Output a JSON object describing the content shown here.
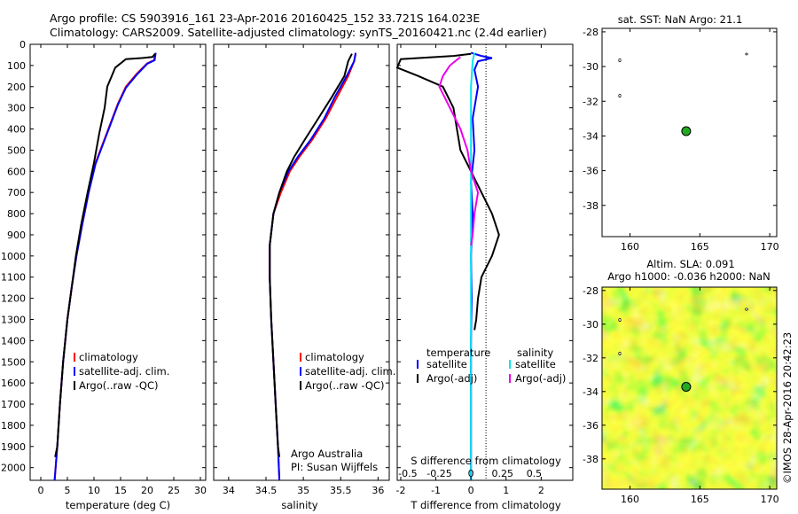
{
  "header": {
    "line1": "Argo profile: CS 5903916_161 23-Apr-2016 20160425_152 33.721S 164.023E",
    "line2": "Climatology: CARS2009. Satellite-adjusted climatology: synTS_20160421.nc (2.4d earlier)"
  },
  "colors": {
    "climatology": "#ff0000",
    "satellite": "#0000ff",
    "argo": "#000000",
    "sal_satellite": "#00e5ee",
    "sal_argo": "#ee00ee",
    "float": "#22aa22"
  },
  "chart_data": [
    {
      "type": "line",
      "id": "temperature",
      "xlabel": "temperature (deg C)",
      "xlim": [
        -2,
        31
      ],
      "ylim": [
        2060,
        0
      ],
      "xticks": [
        0,
        5,
        10,
        15,
        20,
        25,
        30
      ],
      "yticks": [
        0,
        100,
        200,
        300,
        400,
        500,
        600,
        700,
        800,
        900,
        1000,
        1100,
        1200,
        1300,
        1400,
        1500,
        1600,
        1700,
        1800,
        1900,
        2000
      ],
      "legend": [
        "climatology",
        "satellite-adj. clim.",
        "Argo(..raw -QC)"
      ],
      "series": [
        {
          "name": "climatology",
          "color": "#ff0000",
          "points": [
            [
              21.5,
              45
            ],
            [
              21.3,
              75
            ],
            [
              20,
              90
            ],
            [
              18,
              140
            ],
            [
              16,
              200
            ],
            [
              14.5,
              280
            ],
            [
              13,
              380
            ],
            [
              11.5,
              480
            ],
            [
              10.3,
              560
            ],
            [
              9,
              700
            ],
            [
              7.8,
              850
            ],
            [
              6.7,
              1000
            ],
            [
              5.8,
              1150
            ],
            [
              5,
              1300
            ],
            [
              4.2,
              1500
            ],
            [
              3.6,
              1700
            ],
            [
              3.1,
              1900
            ],
            [
              2.6,
              2060
            ]
          ]
        },
        {
          "name": "satellite-adj. clim.",
          "color": "#0000ff",
          "points": [
            [
              21.6,
              40
            ],
            [
              21.4,
              75
            ],
            [
              20,
              92
            ],
            [
              18,
              145
            ],
            [
              16,
              205
            ],
            [
              14.5,
              285
            ],
            [
              13,
              385
            ],
            [
              11.5,
              485
            ],
            [
              10.3,
              565
            ],
            [
              9,
              700
            ],
            [
              7.8,
              850
            ],
            [
              6.7,
              1000
            ],
            [
              5.8,
              1150
            ],
            [
              5,
              1300
            ],
            [
              4.2,
              1500
            ],
            [
              3.6,
              1700
            ],
            [
              3.1,
              1900
            ],
            [
              2.6,
              2060
            ]
          ]
        },
        {
          "name": "Argo(..raw -QC)",
          "color": "#000000",
          "points": [
            [
              21.5,
              45
            ],
            [
              21,
              60
            ],
            [
              19,
              65
            ],
            [
              16,
              70
            ],
            [
              14,
              110
            ],
            [
              12.5,
              200
            ],
            [
              12,
              300
            ],
            [
              11,
              420
            ],
            [
              10,
              560
            ],
            [
              8.8,
              700
            ],
            [
              7.6,
              850
            ],
            [
              6.6,
              1000
            ],
            [
              5.8,
              1150
            ],
            [
              5,
              1300
            ],
            [
              4.2,
              1500
            ],
            [
              3.6,
              1700
            ],
            [
              3.1,
              1900
            ],
            [
              2.7,
              1950
            ]
          ]
        }
      ]
    },
    {
      "type": "line",
      "id": "salinity",
      "xlabel": "salinity",
      "xlim": [
        33.8,
        36.15
      ],
      "ylim": [
        2060,
        0
      ],
      "xticks": [
        34,
        34.5,
        35,
        35.5,
        36
      ],
      "legend": [
        "climatology",
        "satellite-adj. clim.",
        "Argo(..raw -QC)"
      ],
      "annotation": [
        "Argo Australia",
        "PI: Susan Wijffels"
      ],
      "series": [
        {
          "name": "climatology",
          "color": "#ff0000",
          "points": [
            [
              35.7,
              45
            ],
            [
              35.68,
              80
            ],
            [
              35.6,
              150
            ],
            [
              35.45,
              250
            ],
            [
              35.3,
              350
            ],
            [
              35.12,
              450
            ],
            [
              34.95,
              530
            ],
            [
              34.82,
              600
            ],
            [
              34.7,
              700
            ],
            [
              34.6,
              800
            ],
            [
              34.55,
              950
            ],
            [
              34.55,
              1100
            ],
            [
              34.57,
              1300
            ],
            [
              34.6,
              1500
            ],
            [
              34.63,
              1700
            ],
            [
              34.66,
              1900
            ],
            [
              34.68,
              2060
            ]
          ]
        },
        {
          "name": "satellite-adj. clim.",
          "color": "#0000ff",
          "points": [
            [
              35.7,
              40
            ],
            [
              35.68,
              80
            ],
            [
              35.58,
              150
            ],
            [
              35.42,
              250
            ],
            [
              35.28,
              350
            ],
            [
              35.1,
              450
            ],
            [
              34.93,
              530
            ],
            [
              34.8,
              600
            ],
            [
              34.68,
              700
            ],
            [
              34.6,
              800
            ],
            [
              34.55,
              950
            ],
            [
              34.55,
              1100
            ],
            [
              34.57,
              1300
            ],
            [
              34.6,
              1500
            ],
            [
              34.63,
              1700
            ],
            [
              34.66,
              1900
            ],
            [
              34.68,
              2060
            ]
          ]
        },
        {
          "name": "Argo(..raw -QC)",
          "color": "#000000",
          "points": [
            [
              35.65,
              45
            ],
            [
              35.6,
              80
            ],
            [
              35.55,
              150
            ],
            [
              35.38,
              250
            ],
            [
              35.2,
              350
            ],
            [
              35.02,
              450
            ],
            [
              34.88,
              530
            ],
            [
              34.78,
              600
            ],
            [
              34.68,
              700
            ],
            [
              34.6,
              800
            ],
            [
              34.55,
              950
            ],
            [
              34.55,
              1100
            ],
            [
              34.57,
              1300
            ],
            [
              34.6,
              1500
            ],
            [
              34.63,
              1700
            ],
            [
              34.66,
              1900
            ],
            [
              34.68,
              1950
            ]
          ]
        }
      ]
    },
    {
      "type": "line",
      "id": "difference",
      "xlabel_top": "S difference from climatology",
      "xlabel": "T difference from climatology",
      "xlim": [
        -2.1,
        2.9
      ],
      "ylim": [
        2060,
        0
      ],
      "xticks_T": [
        "-2",
        "-1",
        "0",
        "1",
        "2"
      ],
      "xticks_S": [
        "-0.5",
        "-0.25",
        "0",
        "0.25",
        "0.5"
      ],
      "legend_temperature": [
        "temperature",
        "satellite",
        "Argo(-adj)"
      ],
      "legend_salinity": [
        "salinity",
        "satellite",
        "Argo(-adj)"
      ],
      "series": [
        {
          "name": "satellite",
          "color": "#0000ff",
          "points": [
            [
              0,
              40
            ],
            [
              0.3,
              55
            ],
            [
              0.6,
              65
            ],
            [
              0.2,
              80
            ],
            [
              0.1,
              120
            ],
            [
              0.2,
              200
            ],
            [
              0.05,
              350
            ],
            [
              0.1,
              500
            ],
            [
              0,
              650
            ],
            [
              0.05,
              800
            ],
            [
              0,
              1000
            ],
            [
              0.02,
              1200
            ],
            [
              0,
              1400
            ],
            [
              0,
              1600
            ],
            [
              0,
              1800
            ],
            [
              0,
              2060
            ]
          ]
        },
        {
          "name": "Argo(-adj)",
          "color": "#000000",
          "points": [
            [
              0,
              45
            ],
            [
              -0.5,
              55
            ],
            [
              -2,
              70
            ],
            [
              -2.1,
              110
            ],
            [
              -1.5,
              150
            ],
            [
              -0.8,
              200
            ],
            [
              -0.5,
              300
            ],
            [
              -0.4,
              400
            ],
            [
              -0.3,
              500
            ],
            [
              0,
              600
            ],
            [
              0.3,
              700
            ],
            [
              0.6,
              800
            ],
            [
              0.8,
              900
            ],
            [
              0.6,
              1000
            ],
            [
              0.3,
              1100
            ],
            [
              0.2,
              1200
            ],
            [
              0.15,
              1300
            ],
            [
              0.1,
              1350
            ]
          ]
        },
        {
          "name": "satellite",
          "color": "#00e5ee",
          "points": [
            [
              0.1,
              40
            ],
            [
              0.05,
              80
            ],
            [
              0,
              200
            ],
            [
              0,
              400
            ],
            [
              0,
              600
            ],
            [
              0,
              800
            ],
            [
              0,
              1000
            ],
            [
              0,
              1200
            ],
            [
              0,
              1400
            ],
            [
              0,
              1600
            ],
            [
              0,
              1800
            ],
            [
              0,
              2060
            ]
          ]
        },
        {
          "name": "Argo(-adj)",
          "color": "#ee00ee",
          "points": [
            [
              -0.3,
              60
            ],
            [
              -0.6,
              100
            ],
            [
              -0.8,
              150
            ],
            [
              -0.9,
              200
            ],
            [
              -0.6,
              300
            ],
            [
              -0.3,
              400
            ],
            [
              -0.1,
              500
            ],
            [
              0,
              600
            ],
            [
              0.2,
              700
            ],
            [
              0.1,
              800
            ],
            [
              0.05,
              900
            ],
            [
              0,
              950
            ]
          ]
        }
      ]
    },
    {
      "type": "scatter",
      "id": "sst_map",
      "title": "sat. SST: NaN Argo: 21.1",
      "xlim": [
        158,
        170.5
      ],
      "ylim": [
        -39.8,
        -27.8
      ],
      "xticks": [
        160,
        165,
        170
      ],
      "yticks": [
        -28,
        -30,
        -32,
        -34,
        -36,
        -38
      ],
      "float_position": [
        164.023,
        -33.721
      ]
    },
    {
      "type": "heatmap",
      "id": "sla_map",
      "title_line1": "Altim. SLA: 0.091",
      "title_line2": "Argo h1000: -0.036 h2000: NaN",
      "xlim": [
        158,
        170.5
      ],
      "ylim": [
        -39.8,
        -27.8
      ],
      "xticks": [
        160,
        165,
        170
      ],
      "yticks": [
        -28,
        -30,
        -32,
        -34,
        -36,
        -38
      ],
      "float_position": [
        164.023,
        -33.721
      ],
      "credit": "©IMOS 28-Apr-2016 20:42:23"
    }
  ]
}
